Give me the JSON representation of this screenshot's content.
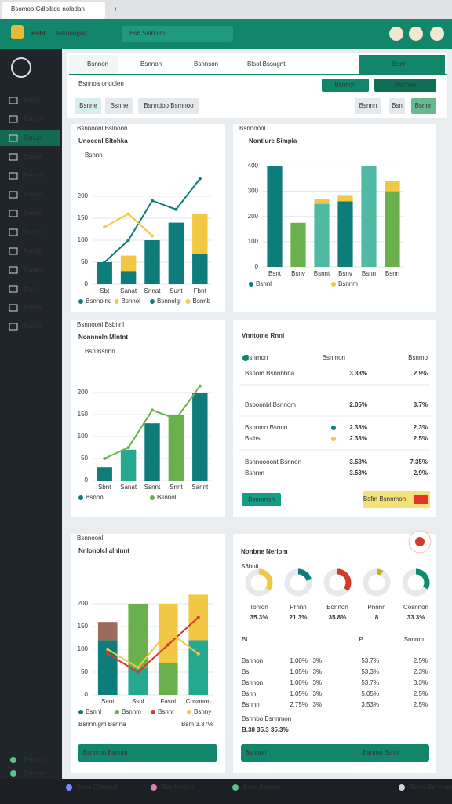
{
  "browser": {
    "tab": "Bsomoo Cdlolbdd nolbdan",
    "new_tab": "+"
  },
  "header": {
    "brand": "Bsht",
    "title": "Nelonogán",
    "search": "Bsb Snlnolm"
  },
  "sidebar": {
    "items": [
      "Bsmo",
      "Bsnom",
      "Bsnuo",
      "Bsfoon",
      "Bsnnos",
      "Bsnnet",
      "Bsnunt",
      "Bscnot",
      "Rsnos",
      "Rsnam",
      "Bsnu",
      "Bsmon",
      "Bsnon"
    ],
    "footer": [
      "Bsnnoo",
      "Bsnmon"
    ]
  },
  "taskbar": [
    "Bsoe Chlonndl",
    "Bsn Bsnbon",
    "Bsno Bsdsan",
    "Bsoro Bsnnlom"
  ],
  "tabs": [
    "Bsnnon",
    "Bsnnon",
    "Bsnnson",
    "Blsol Bssugnt"
  ],
  "tab_action": "Bsnn",
  "toolbar": {
    "filter": "Bsnnoa ondolen",
    "buttons": [
      "Bsnnon",
      "Bsnnon"
    ],
    "chips": [
      "Bsnne",
      "Bsnne",
      "Bsnndoo Bsmnoo"
    ],
    "actions": [
      "Bsnnn",
      "Bsn",
      "Bsnnn"
    ]
  },
  "chart_data": [
    {
      "type": "combo",
      "kicker": "Bsnnoonl Bslnoon",
      "title": "Unoccnl Sltohka",
      "subtitle": "Bsnnn",
      "categories": [
        "Sbt",
        "Sanat",
        "Snnat",
        "Sunt",
        "Fbnt"
      ],
      "ylim": [
        0,
        250
      ],
      "yticks": [
        0,
        50,
        100,
        150,
        200
      ],
      "grid": true,
      "series": [
        {
          "name": "Bsnnolnd",
          "kind": "bar",
          "color": "#0e7c7b",
          "values": [
            50,
            30,
            100,
            140,
            70
          ]
        },
        {
          "name": "Bsnnol",
          "kind": "bar",
          "color": "#f2c744",
          "values": [
            0,
            35,
            0,
            0,
            90
          ]
        },
        {
          "name": "Bsnnolgl",
          "kind": "line",
          "color": "#0e7c7b",
          "values": [
            50,
            100,
            190,
            170,
            240
          ]
        },
        {
          "name": "Bsnnb",
          "kind": "line",
          "color": "#f2c744",
          "values": [
            130,
            160,
            110,
            null,
            null
          ]
        }
      ]
    },
    {
      "type": "combo",
      "kicker": "Bsnnoonl",
      "title": "Nontiure Simpla",
      "categories": [
        "Bsnt",
        "Bsnv",
        "Bsnnt",
        "Bsnv",
        "Bsnn",
        "Bsnn"
      ],
      "ylim": [
        0,
        420
      ],
      "yticks": [
        0,
        100,
        200,
        300,
        400
      ],
      "grid": true,
      "series": [
        {
          "name": "Bsnnl",
          "kind": "bar",
          "color": "#0e7c7b",
          "colors": [
            "#0e7c7b",
            "#6ab04c",
            "#4fb9a3",
            "#0e7c7b",
            "#4fb9a3",
            "#6ab04c"
          ],
          "values": [
            400,
            175,
            250,
            260,
            400,
            300
          ]
        },
        {
          "name": "Bsnnm",
          "kind": "bar",
          "color": "#f2c744",
          "values": [
            0,
            0,
            20,
            25,
            0,
            40
          ]
        }
      ]
    },
    {
      "type": "combo",
      "kicker": "Bsnnoonl Bsbnnl",
      "title": "Nonnneln Mlntnt",
      "subtitle": "Bsn Bsnnn",
      "categories": [
        "Sbnt",
        "Sanat",
        "Ssnnt",
        "Snnt",
        "Sannt"
      ],
      "ylim": [
        0,
        250
      ],
      "yticks": [
        0,
        50,
        100,
        150,
        200
      ],
      "grid": true,
      "series": [
        {
          "name": "Bsnnn",
          "kind": "bar",
          "color": "#0e7c7b",
          "colors": [
            "#0e7c7b",
            "#24a88f",
            "#0e7c7b",
            "#6ab04c",
            "#0e7c7b"
          ],
          "values": [
            30,
            70,
            130,
            150,
            200
          ]
        },
        {
          "name": "Bsnnol",
          "kind": "line",
          "color": "#6ab04c",
          "values": [
            50,
            75,
            160,
            140,
            215
          ]
        }
      ]
    },
    {
      "type": "combo",
      "kicker": "Bsnnoonl",
      "title": "Nnlonolcl alnlnnt",
      "categories": [
        "Sant",
        "Ssnl",
        "Fasnl",
        "Cosnnon"
      ],
      "ylim": [
        0,
        250
      ],
      "yticks": [
        0,
        50,
        100,
        150,
        200
      ],
      "grid": true,
      "series": [
        {
          "name": "Bsnnl",
          "kind": "bar",
          "color": "#0e7c7b",
          "colors": [
            "#0e7c7b",
            "#24a88f",
            "#6ab04c",
            "#24a88f"
          ],
          "values": [
            120,
            60,
            70,
            120
          ]
        },
        {
          "name": "Bsnnm",
          "kind": "bar",
          "color": "#6ab04c",
          "colors": [
            "#9b6b5b",
            "#6ab04c",
            "#f2c744",
            "#f2c744"
          ],
          "values": [
            40,
            140,
            130,
            100
          ]
        },
        {
          "name": "Bsnnr",
          "kind": "line",
          "color": "#d23b2a",
          "values": [
            90,
            50,
            110,
            170
          ]
        },
        {
          "name": "Bsnny",
          "kind": "line",
          "color": "#f2c744",
          "values": [
            100,
            60,
            140,
            90
          ]
        }
      ],
      "footer": "Bsnnnlgm Bsnna",
      "footer_value": "Bsm 3.37%",
      "button": "Bsnnmn Bsnnm"
    },
    {
      "type": "donut",
      "title": "Nonbne Nerlom",
      "subtitle": "S3bnlt",
      "categories": [
        "Tonlon",
        "Prnnn",
        "Bonnon",
        "Pnnnn",
        "Cosnnon"
      ],
      "values": [
        35.3,
        21.3,
        35.8,
        8,
        33.3
      ],
      "value_labels": [
        "35.3%",
        "21.3%",
        "35.8%",
        "8",
        "33.3%"
      ],
      "colors": [
        "#f2c744",
        "#0e7c7b",
        "#d23b2a",
        "#c8b12a",
        "#0e8a6e"
      ],
      "ylim": [
        0,
        100
      ]
    }
  ],
  "table_panel": {
    "title": "Vnntome Rnnl",
    "head": [
      "Bsnmon",
      "Bsnmon",
      "Bsnmo"
    ],
    "rows": [
      [
        "Bsnom Bsnnbbna",
        "3.38%",
        "2.9%"
      ],
      [
        "Bsbonnbl Bsnnom",
        "2.05%",
        "3.7%"
      ],
      [
        "Bsnnmn Bsnnn",
        "2.33%",
        "2.3%"
      ],
      [
        "Bslhs",
        "2.33%",
        "2.5%"
      ],
      [
        "Bsnnoooont Bsnnon",
        "3.58%",
        "7.35%"
      ],
      [
        "Bsnnm",
        "3.53%",
        "2.9%"
      ]
    ],
    "button": "Bsnnmon",
    "highlight": "Bsfm Bsnnmon"
  },
  "donut_table": {
    "head": [
      "Bl",
      "P",
      "Snnnm"
    ],
    "rows": [
      [
        "Bsnnon",
        "1.00%",
        "3%",
        "53.7%",
        "2.5%"
      ],
      [
        "Bs",
        "1.05%",
        "3%",
        "53.3%",
        "2.3%"
      ],
      [
        "Bsnnon",
        "1.00%",
        "3%",
        "53.7%",
        "3.3%"
      ],
      [
        "Bsnn",
        "1.05%",
        "3%",
        "5.05%",
        "2.5%"
      ],
      [
        "Bsnnn",
        "2.75%",
        "3%",
        "3.53%",
        "2.5%"
      ]
    ],
    "footer": "Bsnnbo Bsnnmon",
    "footer_value": "B.38 35.3 35.3%",
    "button": "Bsnnon",
    "button2": "Bsnmo Bsnnl"
  }
}
